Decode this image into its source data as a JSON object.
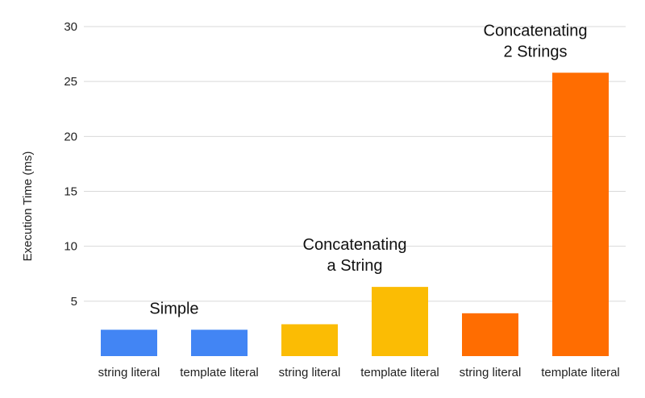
{
  "chart_data": {
    "type": "bar",
    "title": "",
    "xlabel": "",
    "ylabel": "Execution Time (ms)",
    "ylim": [
      0,
      30
    ],
    "yticks": [
      5,
      10,
      15,
      20,
      25,
      30
    ],
    "grid": true,
    "categories": [
      "string literal",
      "template literal",
      "string literal",
      "template literal",
      "string literal",
      "template literal"
    ],
    "values": [
      2.4,
      2.4,
      2.9,
      6.3,
      3.9,
      25.8
    ],
    "bar_colors": [
      "#4285F4",
      "#4285F4",
      "#FBBC04",
      "#FBBC04",
      "#FF6D01",
      "#FF6D01"
    ],
    "groups": [
      {
        "label_lines": [
          "Simple"
        ],
        "bars": [
          0,
          1
        ]
      },
      {
        "label_lines": [
          "Concatenating",
          "a String"
        ],
        "bars": [
          2,
          3
        ]
      },
      {
        "label_lines": [
          "Concatenating",
          "2 Strings"
        ],
        "bars": [
          4,
          5
        ]
      }
    ]
  }
}
